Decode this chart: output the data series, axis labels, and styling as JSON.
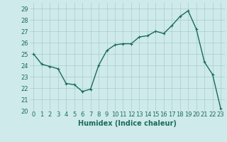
{
  "x": [
    0,
    1,
    2,
    3,
    4,
    5,
    6,
    7,
    8,
    9,
    10,
    11,
    12,
    13,
    14,
    15,
    16,
    17,
    18,
    19,
    20,
    21,
    22,
    23
  ],
  "y": [
    25.0,
    24.1,
    23.9,
    23.7,
    22.4,
    22.3,
    21.7,
    21.9,
    24.0,
    25.3,
    25.8,
    25.9,
    25.9,
    26.5,
    26.6,
    27.0,
    26.8,
    27.5,
    28.3,
    28.8,
    27.2,
    24.3,
    23.2,
    20.2
  ],
  "line_color": "#1a6b5a",
  "marker": "+",
  "marker_size": 3,
  "bg_color": "#ceeaea",
  "grid_color": "#aacccc",
  "xlabel": "Humidex (Indice chaleur)",
  "ylim": [
    20,
    29.5
  ],
  "xlim": [
    -0.5,
    23.5
  ],
  "yticks": [
    20,
    21,
    22,
    23,
    24,
    25,
    26,
    27,
    28,
    29
  ],
  "xticks": [
    0,
    1,
    2,
    3,
    4,
    5,
    6,
    7,
    8,
    9,
    10,
    11,
    12,
    13,
    14,
    15,
    16,
    17,
    18,
    19,
    20,
    21,
    22,
    23
  ],
  "xlabel_fontsize": 7,
  "tick_fontsize": 6,
  "line_width": 1.0
}
